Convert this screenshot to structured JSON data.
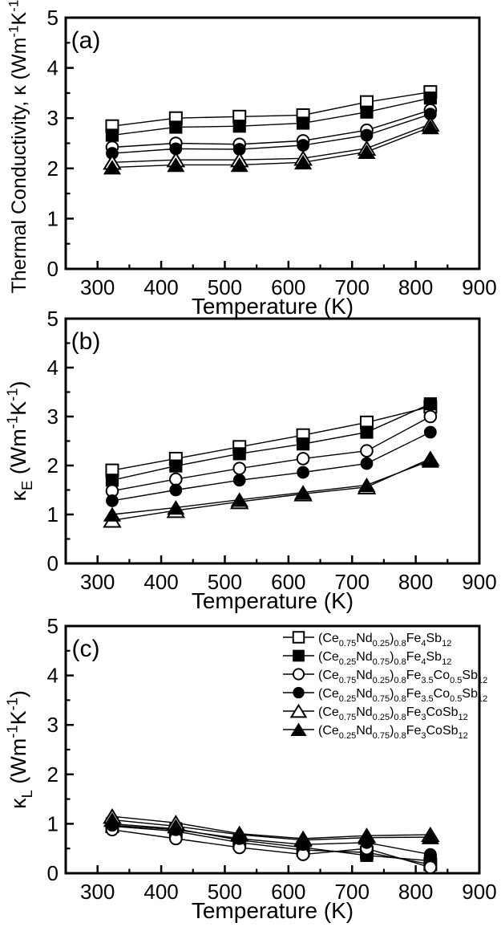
{
  "figure": {
    "background": "#ffffff",
    "ink": "#000000",
    "x_axis_title": "Temperature (K)"
  },
  "chart_data": [
    {
      "id": "a",
      "type": "line",
      "panel_label": "(a)",
      "xlabel": "Temperature (K)",
      "ylabel": "Thermal Conductivity, κ (Wm-1K-1)",
      "ylabel_segments": [
        {
          "t": "Thermal Conductivity, κ (Wm"
        },
        {
          "sup": "-1"
        },
        {
          "t": "K"
        },
        {
          "sup": "-1"
        },
        {
          "t": ")"
        }
      ],
      "xlim": [
        250,
        900
      ],
      "ylim": [
        0,
        5
      ],
      "x_major_ticks": [
        300,
        400,
        500,
        600,
        700,
        800,
        900
      ],
      "x_minor_ticks": [
        350,
        450,
        550,
        650,
        750,
        850
      ],
      "y_major_ticks": [
        0,
        1,
        2,
        3,
        4,
        5
      ],
      "y_minor_ticks": [
        0.5,
        1.5,
        2.5,
        3.5,
        4.5
      ],
      "grid": false,
      "legend": false,
      "x": [
        323,
        423,
        523,
        623,
        723,
        823
      ],
      "series": [
        {
          "name": "(Ce0.75Nd0.25)0.8Fe4Sb12",
          "marker": "open-square",
          "values": [
            2.84,
            3.0,
            3.03,
            3.06,
            3.32,
            3.52
          ]
        },
        {
          "name": "(Ce0.25Nd0.75)0.8Fe4Sb12",
          "marker": "filled-square",
          "values": [
            2.66,
            2.82,
            2.84,
            2.9,
            3.12,
            3.4
          ]
        },
        {
          "name": "(Ce0.75Nd0.25)0.8Fe3.5Co0.5Sb12",
          "marker": "open-circle",
          "values": [
            2.42,
            2.5,
            2.48,
            2.55,
            2.76,
            3.16
          ]
        },
        {
          "name": "(Ce0.25Nd0.75)0.8Fe3.5Co0.5Sb12",
          "marker": "filled-circle",
          "values": [
            2.3,
            2.39,
            2.38,
            2.46,
            2.66,
            3.08
          ]
        },
        {
          "name": "(Ce0.75Nd0.25)0.8Fe3CoSb12",
          "marker": "open-triangle",
          "values": [
            2.12,
            2.17,
            2.17,
            2.2,
            2.4,
            2.88
          ]
        },
        {
          "name": "(Ce0.25Nd0.75)0.8Fe3CoSb12",
          "marker": "filled-triangle",
          "values": [
            2.02,
            2.07,
            2.07,
            2.12,
            2.33,
            2.82
          ]
        }
      ]
    },
    {
      "id": "b",
      "type": "line",
      "panel_label": "(b)",
      "xlabel": "Temperature (K)",
      "ylabel": "κE (Wm-1K-1)",
      "ylabel_segments": [
        {
          "t": "κ"
        },
        {
          "sub": "E"
        },
        {
          "t": " (Wm"
        },
        {
          "sup": "-1"
        },
        {
          "t": "K"
        },
        {
          "sup": "-1"
        },
        {
          "t": ")"
        }
      ],
      "xlim": [
        250,
        900
      ],
      "ylim": [
        0,
        5
      ],
      "x_major_ticks": [
        300,
        400,
        500,
        600,
        700,
        800,
        900
      ],
      "x_minor_ticks": [
        350,
        450,
        550,
        650,
        750,
        850
      ],
      "y_major_ticks": [
        0,
        1,
        2,
        3,
        4,
        5
      ],
      "y_minor_ticks": [
        0.5,
        1.5,
        2.5,
        3.5,
        4.5
      ],
      "grid": false,
      "legend": false,
      "x": [
        323,
        423,
        523,
        623,
        723,
        823
      ],
      "series": [
        {
          "name": "(Ce0.75Nd0.25)0.8Fe4Sb12",
          "marker": "open-square",
          "values": [
            1.9,
            2.14,
            2.38,
            2.62,
            2.88,
            3.2
          ]
        },
        {
          "name": "(Ce0.25Nd0.75)0.8Fe4Sb12",
          "marker": "filled-square",
          "values": [
            1.7,
            1.99,
            2.24,
            2.44,
            2.68,
            3.26
          ]
        },
        {
          "name": "(Ce0.75Nd0.25)0.8Fe3.5Co0.5Sb12",
          "marker": "open-circle",
          "values": [
            1.48,
            1.72,
            1.94,
            2.14,
            2.3,
            3.0
          ]
        },
        {
          "name": "(Ce0.25Nd0.75)0.8Fe3.5Co0.5Sb12",
          "marker": "filled-circle",
          "values": [
            1.28,
            1.5,
            1.7,
            1.86,
            2.04,
            2.68
          ]
        },
        {
          "name": "(Ce0.75Nd0.25)0.8Fe3CoSb12",
          "marker": "open-triangle",
          "values": [
            0.88,
            1.08,
            1.26,
            1.42,
            1.56,
            2.14
          ]
        },
        {
          "name": "(Ce0.25Nd0.75)0.8Fe3CoSb12",
          "marker": "filled-triangle",
          "values": [
            1.0,
            1.14,
            1.3,
            1.45,
            1.6,
            2.1
          ]
        }
      ]
    },
    {
      "id": "c",
      "type": "line",
      "panel_label": "(c)",
      "xlabel": "Temperature (K)",
      "ylabel": "κL (Wm-1K-1)",
      "ylabel_segments": [
        {
          "t": "κ"
        },
        {
          "sub": "L"
        },
        {
          "t": " (Wm"
        },
        {
          "sup": "-1"
        },
        {
          "t": "K"
        },
        {
          "sup": "-1"
        },
        {
          "t": ")"
        }
      ],
      "xlim": [
        250,
        900
      ],
      "ylim": [
        0,
        5
      ],
      "x_major_ticks": [
        300,
        400,
        500,
        600,
        700,
        800,
        900
      ],
      "x_minor_ticks": [
        350,
        450,
        550,
        650,
        750,
        850
      ],
      "y_major_ticks": [
        0,
        1,
        2,
        3,
        4,
        5
      ],
      "y_minor_ticks": [
        0.5,
        1.5,
        2.5,
        3.5,
        4.5
      ],
      "grid": false,
      "legend": true,
      "x": [
        323,
        423,
        523,
        623,
        723,
        823
      ],
      "series": [
        {
          "name": "(Ce0.75Nd0.25)0.8Fe4Sb12",
          "marker": "open-square",
          "values": [
            0.95,
            0.85,
            0.62,
            0.47,
            0.42,
            0.18
          ]
        },
        {
          "name": "(Ce0.25Nd0.75)0.8Fe4Sb12",
          "marker": "filled-square",
          "values": [
            1.0,
            0.9,
            0.67,
            0.52,
            0.36,
            0.25
          ]
        },
        {
          "name": "(Ce0.75Nd0.25)0.8Fe3.5Co0.5Sb12",
          "marker": "open-circle",
          "values": [
            0.88,
            0.7,
            0.52,
            0.38,
            0.5,
            0.12
          ]
        },
        {
          "name": "(Ce0.25Nd0.75)0.8Fe3.5Co0.5Sb12",
          "marker": "filled-circle",
          "values": [
            0.97,
            0.88,
            0.7,
            0.58,
            0.62,
            0.38
          ]
        },
        {
          "name": "(Ce0.75Nd0.25)0.8Fe3CoSb12",
          "marker": "open-triangle",
          "values": [
            1.15,
            1.02,
            0.8,
            0.7,
            0.76,
            0.78
          ]
        },
        {
          "name": "(Ce0.25Nd0.75)0.8Fe3CoSb12",
          "marker": "filled-triangle",
          "values": [
            1.08,
            0.95,
            0.78,
            0.67,
            0.72,
            0.73
          ]
        }
      ]
    }
  ],
  "legend": {
    "position": "panel-c-top-right",
    "entries": [
      {
        "marker": "open-square",
        "label": "(Ce0.75Nd0.25)0.8Fe4Sb12",
        "segments": [
          {
            "t": "(Ce"
          },
          {
            "sub": "0.75"
          },
          {
            "t": "Nd"
          },
          {
            "sub": "0.25"
          },
          {
            "t": ")"
          },
          {
            "sub": "0.8"
          },
          {
            "t": "Fe"
          },
          {
            "sub": "4"
          },
          {
            "t": "Sb"
          },
          {
            "sub": "12"
          }
        ]
      },
      {
        "marker": "filled-square",
        "label": "(Ce0.25Nd0.75)0.8Fe4Sb12",
        "segments": [
          {
            "t": "(Ce"
          },
          {
            "sub": "0.25"
          },
          {
            "t": "Nd"
          },
          {
            "sub": "0.75"
          },
          {
            "t": ")"
          },
          {
            "sub": "0.8"
          },
          {
            "t": "Fe"
          },
          {
            "sub": "4"
          },
          {
            "t": "Sb"
          },
          {
            "sub": "12"
          }
        ]
      },
      {
        "marker": "open-circle",
        "label": "(Ce0.75Nd0.25)0.8Fe3.5Co0.5Sb12",
        "segments": [
          {
            "t": "(Ce"
          },
          {
            "sub": "0.75"
          },
          {
            "t": "Nd"
          },
          {
            "sub": "0.25"
          },
          {
            "t": ")"
          },
          {
            "sub": "0.8"
          },
          {
            "t": "Fe"
          },
          {
            "sub": "3.5"
          },
          {
            "t": "Co"
          },
          {
            "sub": "0.5"
          },
          {
            "t": "Sb"
          },
          {
            "sub": "12"
          }
        ]
      },
      {
        "marker": "filled-circle",
        "label": "(Ce0.25Nd0.75)0.8Fe3.5Co0.5Sb12",
        "segments": [
          {
            "t": "(Ce"
          },
          {
            "sub": "0.25"
          },
          {
            "t": "Nd"
          },
          {
            "sub": "0.75"
          },
          {
            "t": ")"
          },
          {
            "sub": "0.8"
          },
          {
            "t": "Fe"
          },
          {
            "sub": "3.5"
          },
          {
            "t": "Co"
          },
          {
            "sub": "0.5"
          },
          {
            "t": "Sb"
          },
          {
            "sub": "12"
          }
        ]
      },
      {
        "marker": "open-triangle",
        "label": "(Ce0.75Nd0.25)0.8Fe3CoSb12",
        "segments": [
          {
            "t": "(Ce"
          },
          {
            "sub": "0.75"
          },
          {
            "t": "Nd"
          },
          {
            "sub": "0.25"
          },
          {
            "t": ")"
          },
          {
            "sub": "0.8"
          },
          {
            "t": "Fe"
          },
          {
            "sub": "3"
          },
          {
            "t": "CoSb"
          },
          {
            "sub": "12"
          }
        ]
      },
      {
        "marker": "filled-triangle",
        "label": "(Ce0.25Nd0.75)0.8Fe3CoSb12",
        "segments": [
          {
            "t": "(Ce"
          },
          {
            "sub": "0.25"
          },
          {
            "t": "Nd"
          },
          {
            "sub": "0.75"
          },
          {
            "t": ")"
          },
          {
            "sub": "0.8"
          },
          {
            "t": "Fe"
          },
          {
            "sub": "3"
          },
          {
            "t": "CoSb"
          },
          {
            "sub": "12"
          }
        ]
      }
    ]
  }
}
